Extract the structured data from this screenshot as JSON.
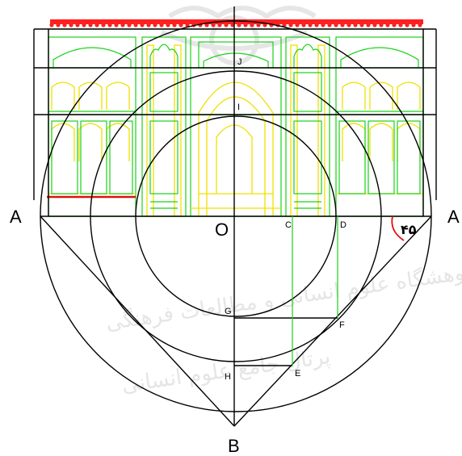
{
  "diagram": {
    "labels": {
      "left_point": "A",
      "right_point": "A",
      "center": "O",
      "bottom_point": "B",
      "point_c": "C",
      "point_d": "D",
      "point_g": "G",
      "point_f": "F",
      "point_h": "H",
      "point_e": "E",
      "point_j": "J",
      "point_i": "I",
      "angle": "۴۵"
    },
    "colors": {
      "facade_green": "#19d219",
      "facade_yellow": "#f0e000",
      "cornice_red": "#ff2020",
      "base_red": "#e01010",
      "construction_black": "#000000",
      "watermark_gray": "#c8c8c8"
    },
    "watermark_lines": [
      "پرتال جامع علوم انسانی",
      "پژوهشگاه علوم انسانی و مطالعات فرهنگی"
    ]
  }
}
